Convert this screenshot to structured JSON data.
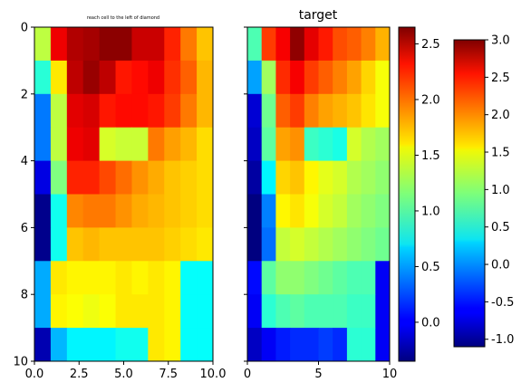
{
  "chart_data": [
    {
      "type": "heatmap",
      "title": "reach cell to the left of diamond",
      "xlim": [
        0,
        10
      ],
      "ylim": [
        10,
        0
      ],
      "xticks": [
        "0.0",
        "2.5",
        "5.0",
        "7.5",
        "10.0"
      ],
      "yticks": [
        "0",
        "2",
        "4",
        "6",
        "8",
        "10"
      ],
      "colormap": "jet",
      "vmin": -1.1,
      "vmax": 3.0,
      "values": [
        [
          1.2,
          2.55,
          2.8,
          2.85,
          2.95,
          2.95,
          2.7,
          2.7,
          2.35,
          2.0,
          1.7
        ],
        [
          0.6,
          1.55,
          2.75,
          2.9,
          2.75,
          2.4,
          2.45,
          2.55,
          2.3,
          2.1,
          1.75
        ],
        [
          -0.1,
          1.2,
          2.6,
          2.65,
          2.4,
          2.45,
          2.45,
          2.4,
          2.25,
          2.0,
          1.75
        ],
        [
          -0.1,
          1.2,
          2.55,
          2.6,
          1.3,
          1.25,
          1.25,
          2.0,
          1.85,
          1.75,
          1.6
        ],
        [
          -0.7,
          0.95,
          2.35,
          2.35,
          2.2,
          2.05,
          1.9,
          1.8,
          1.7,
          1.65,
          1.6
        ],
        [
          -1.05,
          0.5,
          1.95,
          2.0,
          2.0,
          1.9,
          1.8,
          1.75,
          1.7,
          1.65,
          1.6
        ],
        [
          -1.05,
          0.5,
          1.7,
          1.75,
          1.7,
          1.7,
          1.7,
          1.7,
          1.65,
          1.6,
          1.55
        ],
        [
          0.1,
          1.55,
          1.5,
          1.5,
          1.5,
          1.55,
          1.5,
          1.55,
          1.5,
          0.45,
          0.45
        ],
        [
          0.1,
          1.5,
          1.45,
          1.4,
          1.45,
          1.55,
          1.55,
          1.55,
          1.5,
          0.45,
          0.45
        ],
        [
          -0.9,
          0.15,
          0.4,
          0.4,
          0.4,
          0.5,
          0.5,
          1.55,
          1.5,
          0.45,
          0.45
        ]
      ]
    },
    {
      "type": "heatmap",
      "title": "target",
      "xlim": [
        0,
        10
      ],
      "ylim": [
        10,
        0
      ],
      "xticks": [
        "0",
        "5",
        "10"
      ],
      "yticks": [
        "0",
        "2",
        "4",
        "6",
        "8",
        "10"
      ],
      "colormap": "jet",
      "vmin": -0.35,
      "vmax": 2.65,
      "values": [
        [
          1.0,
          2.1,
          2.3,
          2.6,
          2.35,
          2.2,
          2.05,
          2.0,
          1.9,
          1.75
        ],
        [
          0.5,
          1.25,
          2.15,
          2.3,
          2.1,
          2.0,
          1.9,
          1.8,
          1.65,
          1.5
        ],
        [
          -0.1,
          1.1,
          2.0,
          2.1,
          1.9,
          1.8,
          1.75,
          1.7,
          1.6,
          1.5
        ],
        [
          -0.15,
          1.05,
          1.8,
          1.85,
          0.95,
          0.9,
          0.85,
          1.4,
          1.3,
          1.25
        ],
        [
          -0.25,
          0.75,
          1.65,
          1.7,
          1.55,
          1.45,
          1.4,
          1.3,
          1.25,
          1.2
        ],
        [
          -0.35,
          0.4,
          1.55,
          1.6,
          1.5,
          1.4,
          1.35,
          1.25,
          1.2,
          1.15
        ],
        [
          -0.35,
          0.35,
          1.35,
          1.4,
          1.35,
          1.3,
          1.25,
          1.2,
          1.15,
          1.1
        ],
        [
          0.05,
          1.05,
          1.2,
          1.2,
          1.15,
          1.1,
          1.05,
          1.0,
          1.0,
          0.0
        ],
        [
          0.0,
          0.9,
          1.0,
          1.05,
          1.0,
          1.0,
          1.0,
          0.95,
          0.95,
          0.0
        ],
        [
          -0.15,
          0.0,
          0.1,
          0.15,
          0.15,
          0.2,
          0.15,
          0.9,
          0.9,
          0.0
        ]
      ]
    }
  ],
  "colorbars": [
    {
      "ticks": [
        "0.0",
        "0.5",
        "1.0",
        "1.5",
        "2.0",
        "2.5"
      ],
      "tick_values": [
        0.0,
        0.5,
        1.0,
        1.5,
        2.0,
        2.5
      ],
      "vmin": -0.35,
      "vmax": 2.65
    },
    {
      "ticks": [
        "-1.0",
        "-0.5",
        "0.0",
        "0.5",
        "1.0",
        "1.5",
        "2.0",
        "2.5",
        "3.0"
      ],
      "tick_values": [
        -1.0,
        -0.5,
        0.0,
        0.5,
        1.0,
        1.5,
        2.0,
        2.5,
        3.0
      ],
      "vmin": -1.1,
      "vmax": 3.0
    }
  ]
}
